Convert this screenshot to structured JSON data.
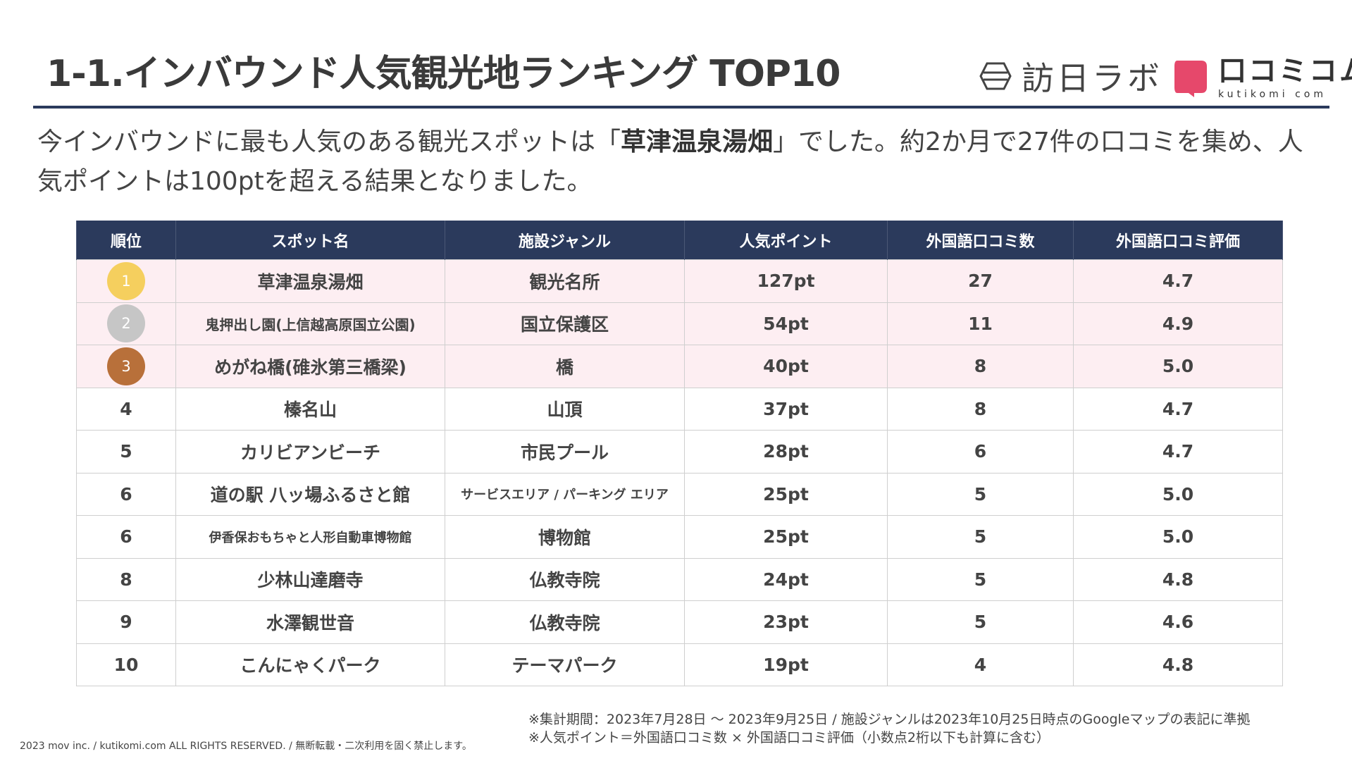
{
  "header": {
    "title": "1-1.インバウンド人気観光地ランキング TOP10",
    "logo_houjin_text": "訪日ラボ",
    "logo_kutikomi_jp": "口コミコム",
    "logo_kutikomi_en": "kutikomi com",
    "accent_color": "#2b3a5c",
    "brand_color": "#e6486b"
  },
  "lead": {
    "before": "今インバウンドに最も人気のある観光スポットは「",
    "highlight": "草津温泉湯畑",
    "after": "」でした。約2か月で27件の口コミを集め、人気ポイントは100ptを超える結果となりました。"
  },
  "table": {
    "headers": [
      "順位",
      "スポット名",
      "施設ジャンル",
      "人気ポイント",
      "外国語口コミ数",
      "外国語口コミ評価"
    ],
    "rows": [
      {
        "rank": "1",
        "spot": "草津温泉湯畑",
        "genre": "観光名所",
        "points": "127pt",
        "count": "27",
        "rating": "4.7",
        "medal": "#f5cf5e"
      },
      {
        "rank": "2",
        "spot": "鬼押出し園(上信越高原国立公園)",
        "genre": "国立保護区",
        "points": "54pt",
        "count": "11",
        "rating": "4.9",
        "medal": "#c6c6c6"
      },
      {
        "rank": "3",
        "spot": "めがね橋(碓氷第三橋梁)",
        "genre": "橋",
        "points": "40pt",
        "count": "8",
        "rating": "5.0",
        "medal": "#b8703a"
      },
      {
        "rank": "4",
        "spot": "榛名山",
        "genre": "山頂",
        "points": "37pt",
        "count": "8",
        "rating": "4.7"
      },
      {
        "rank": "5",
        "spot": "カリビアンビーチ",
        "genre": "市民プール",
        "points": "28pt",
        "count": "6",
        "rating": "4.7"
      },
      {
        "rank": "6",
        "spot": "道の駅 八ッ場ふるさと館",
        "genre": "サービスエリア / パーキング エリア",
        "points": "25pt",
        "count": "5",
        "rating": "5.0"
      },
      {
        "rank": "6",
        "spot": "伊香保おもちゃと人形自動車博物館",
        "genre": "博物館",
        "points": "25pt",
        "count": "5",
        "rating": "5.0"
      },
      {
        "rank": "8",
        "spot": "少林山達磨寺",
        "genre": "仏教寺院",
        "points": "24pt",
        "count": "5",
        "rating": "4.8"
      },
      {
        "rank": "9",
        "spot": "水澤観世音",
        "genre": "仏教寺院",
        "points": "23pt",
        "count": "5",
        "rating": "4.6"
      },
      {
        "rank": "10",
        "spot": "こんにゃくパーク",
        "genre": "テーマパーク",
        "points": "19pt",
        "count": "4",
        "rating": "4.8"
      }
    ]
  },
  "notes": {
    "line1": "※集計期間：2023年7月28日 〜 2023年9月25日 / 施設ジャンルは2023年10月25日時点のGoogleマップの表記に準拠",
    "line2": "※人気ポイント＝外国語口コミ数 × 外国語口コミ評価（小数点2桁以下も計算に含む）"
  },
  "footer": {
    "copyright": "2023 mov inc. / kutikomi.com ALL RIGHTS RESERVED. / 無断転載・二次利用を固く禁止します。"
  }
}
